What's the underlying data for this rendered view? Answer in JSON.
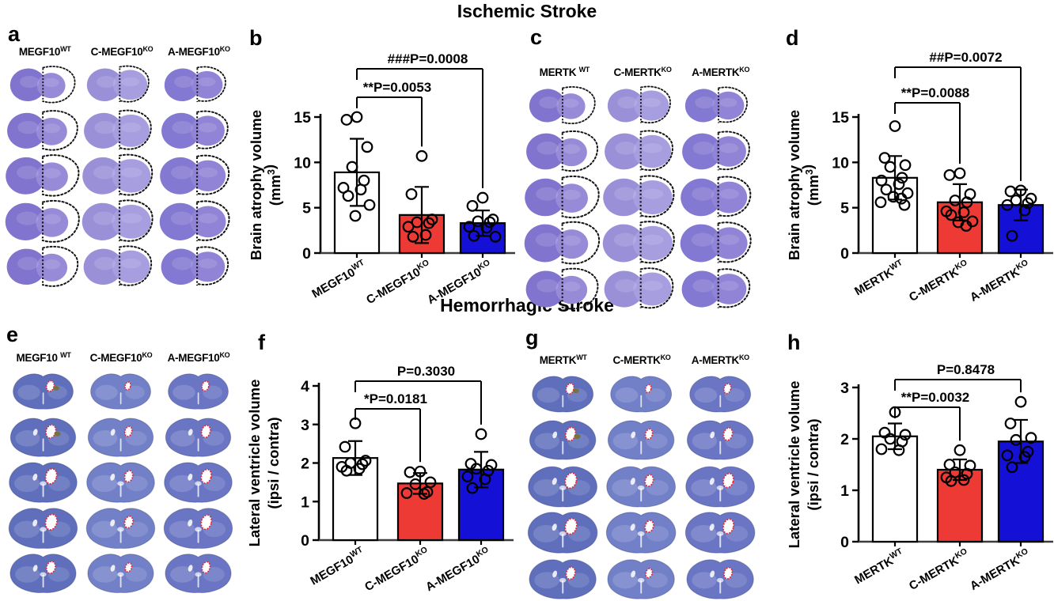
{
  "sections": {
    "ischemic": {
      "title": "Ischemic Stroke"
    },
    "hemorrhagic": {
      "title": "Hemorrhagic Stroke"
    }
  },
  "colors": {
    "bar_wt": "#ffffff",
    "bar_conditional_ko": "#ee3a35",
    "bar_acute_ko": "#1410d6",
    "axis": "#3d3d3d",
    "ink": "#000000",
    "nissl_stain": "#8174ce",
    "nissl_stain_light": "#9a90d8",
    "luxol_stain": "#6274bd",
    "atrophy_outline": "#141414",
    "ventricle_outline": "#e8252d"
  },
  "histology_panels": [
    {
      "id": "a",
      "letter": "a",
      "stain": "nissl",
      "rows": 5,
      "columns": [
        {
          "base": "MEGF10",
          "sup": "WT"
        },
        {
          "base": "C-MEGF10",
          "sup": "KO"
        },
        {
          "base": "A-MEGF10",
          "sup": "KO"
        }
      ]
    },
    {
      "id": "c",
      "letter": "c",
      "stain": "nissl",
      "rows": 5,
      "columns": [
        {
          "base": "MERTK ",
          "sup": "WT"
        },
        {
          "base": "C-MERTK",
          "sup": "KO"
        },
        {
          "base": "A-MERTK",
          "sup": "KO"
        }
      ]
    },
    {
      "id": "e",
      "letter": "e",
      "stain": "luxol",
      "rows": 5,
      "columns": [
        {
          "base": "MEGF10 ",
          "sup": "WT"
        },
        {
          "base": "C-MEGF10",
          "sup": "KO"
        },
        {
          "base": "A-MEGF10",
          "sup": "KO"
        }
      ]
    },
    {
      "id": "g",
      "letter": "g",
      "stain": "luxol",
      "rows": 5,
      "columns": [
        {
          "base": "MERTK",
          "sup": "WT"
        },
        {
          "base": "C-MERTK",
          "sup": "KO"
        },
        {
          "base": "A-MERTK",
          "sup": "KO"
        }
      ]
    }
  ],
  "chart_data": [
    {
      "id": "b",
      "letter": "b",
      "type": "bar",
      "ylabel_line1": "Brain atrophy volume",
      "ylabel_line2": [
        {
          "t": "(mm"
        },
        {
          "t": "3",
          "sup": true
        },
        {
          "t": ")"
        }
      ],
      "categories": [
        {
          "base": "MEGF10",
          "sup": "WT"
        },
        {
          "base": "C-MEGF10",
          "sup": "KO"
        },
        {
          "base": "A-MEGF10",
          "sup": "KO"
        }
      ],
      "bar_colors": [
        "bar_wt",
        "bar_conditional_ko",
        "bar_acute_ko"
      ],
      "values": [
        8.9,
        4.2,
        3.3
      ],
      "sd": [
        3.7,
        3.1,
        1.4
      ],
      "points": [
        [
          15.0,
          14.7,
          11.7,
          9.5,
          8.0,
          7.2,
          7.0,
          6.3,
          5.3,
          4.1
        ],
        [
          10.7,
          6.5,
          3.7,
          3.4,
          3.3,
          2.9,
          2.0,
          1.8
        ],
        [
          6.1,
          5.2,
          3.7,
          3.5,
          3.4,
          2.9,
          2.8,
          1.9,
          1.8
        ]
      ],
      "ylim": [
        0,
        15
      ],
      "yticks": [
        0,
        5,
        10,
        15
      ],
      "significance": [
        {
          "label": "###P=0.0008",
          "from": 0,
          "to": 2,
          "level": 1
        },
        {
          "label": "**P=0.0053",
          "from": 0,
          "to": 1,
          "level": 2
        }
      ]
    },
    {
      "id": "d",
      "letter": "d",
      "type": "bar",
      "ylabel_line1": "Brain atrophy volume",
      "ylabel_line2": [
        {
          "t": "(mm"
        },
        {
          "t": "3",
          "sup": true
        },
        {
          "t": ")"
        }
      ],
      "categories": [
        {
          "base": "MERTK",
          "sup": "WT"
        },
        {
          "base": "C-MERTK",
          "sup": "KO"
        },
        {
          "base": "A-MERTK",
          "sup": "KO"
        }
      ],
      "bar_colors": [
        "bar_wt",
        "bar_conditional_ko",
        "bar_acute_ko"
      ],
      "values": [
        8.3,
        5.6,
        5.3
      ],
      "sd": [
        2.4,
        2.0,
        1.7
      ],
      "points": [
        [
          14.0,
          10.5,
          9.7,
          9.5,
          8.3,
          8.0,
          7.6,
          7.0,
          6.6,
          6.2,
          6.0,
          5.6,
          5.3
        ],
        [
          8.8,
          8.6,
          6.5,
          5.8,
          5.6,
          4.6,
          4.5,
          4.2,
          3.5,
          3.4,
          3.0
        ],
        [
          6.9,
          6.8,
          6.0,
          5.8,
          5.5,
          5.3,
          4.7,
          1.9
        ]
      ],
      "ylim": [
        0,
        15
      ],
      "yticks": [
        0,
        5,
        10,
        15
      ],
      "significance": [
        {
          "label": "##P=0.0072",
          "from": 0,
          "to": 2,
          "level": 1
        },
        {
          "label": "**P=0.0088",
          "from": 0,
          "to": 1,
          "level": 2
        }
      ]
    },
    {
      "id": "f",
      "letter": "f",
      "type": "bar",
      "ylabel_line1": "Lateral ventricle volume",
      "ylabel_line2": [
        {
          "t": "(ipsi / contra)"
        }
      ],
      "categories": [
        {
          "base": "MEGF10",
          "sup": "WT"
        },
        {
          "base": "C-MEGF10",
          "sup": "KO"
        },
        {
          "base": "A-MEGF10",
          "sup": "KO"
        }
      ],
      "bar_colors": [
        "bar_wt",
        "bar_conditional_ko",
        "bar_acute_ko"
      ],
      "values": [
        2.13,
        1.47,
        1.83
      ],
      "sd": [
        0.44,
        0.27,
        0.46
      ],
      "points": [
        [
          3.03,
          2.42,
          2.06,
          2.0,
          1.97,
          1.9,
          1.85,
          1.8
        ],
        [
          1.78,
          1.76,
          1.5,
          1.45,
          1.25,
          1.22,
          1.2
        ],
        [
          2.75,
          1.98,
          1.95,
          1.85,
          1.8,
          1.65,
          1.58,
          1.35
        ]
      ],
      "ylim": [
        0,
        4
      ],
      "yticks": [
        0,
        1,
        2,
        3,
        4
      ],
      "significance": [
        {
          "label": "P=0.3030",
          "from": 0,
          "to": 2,
          "level": 1
        },
        {
          "label": "*P=0.0181",
          "from": 0,
          "to": 1,
          "level": 2
        }
      ]
    },
    {
      "id": "h",
      "letter": "h",
      "type": "bar",
      "ylabel_line1": "Lateral ventricle volume",
      "ylabel_line2": [
        {
          "t": "(ipsi / contra)"
        }
      ],
      "categories": [
        {
          "base": "MERTK",
          "sup": "WT"
        },
        {
          "base": "C-MERTK",
          "sup": "KO"
        },
        {
          "base": "A-MERTK",
          "sup": "KO"
        }
      ],
      "bar_colors": [
        "bar_wt",
        "bar_conditional_ko",
        "bar_acute_ko"
      ],
      "values": [
        2.05,
        1.4,
        1.95
      ],
      "sd": [
        0.25,
        0.2,
        0.42
      ],
      "points": [
        [
          2.52,
          2.12,
          2.08,
          2.0,
          1.95,
          1.8,
          1.78
        ],
        [
          1.78,
          1.5,
          1.48,
          1.35,
          1.32,
          1.25,
          1.2,
          1.18
        ],
        [
          2.72,
          2.3,
          2.02,
          1.98,
          1.75,
          1.68,
          1.65,
          1.45
        ]
      ],
      "ylim": [
        0,
        3
      ],
      "yticks": [
        0,
        1,
        2,
        3
      ],
      "significance": [
        {
          "label": "P=0.8478",
          "from": 0,
          "to": 2,
          "level": 1
        },
        {
          "label": "**P=0.0032",
          "from": 0,
          "to": 1,
          "level": 2
        }
      ]
    }
  ]
}
